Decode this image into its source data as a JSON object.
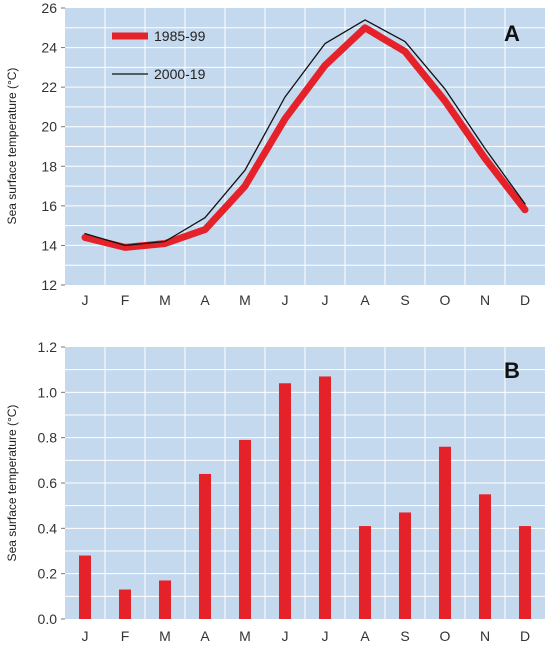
{
  "colors": {
    "background": "#c5d9ee",
    "grid": "#ffffff",
    "series_1985_99": "#e52129",
    "series_2000_19": "#111111",
    "bars": "#e52129"
  },
  "chart_data": [
    {
      "type": "line",
      "panel_label": "A",
      "title": "",
      "ylabel": "Sea surface temperature (°C)",
      "xlabel": "",
      "categories": [
        "J",
        "F",
        "M",
        "A",
        "M",
        "J",
        "J",
        "A",
        "S",
        "O",
        "N",
        "D"
      ],
      "ylim": [
        12,
        26
      ],
      "yticks": [
        12,
        14,
        16,
        18,
        20,
        22,
        24,
        26
      ],
      "grid": true,
      "legend_position": "top-left",
      "series": [
        {
          "name": "1985-99",
          "values": [
            14.4,
            13.9,
            14.1,
            14.8,
            17.0,
            20.4,
            23.1,
            25.0,
            23.8,
            21.3,
            18.4,
            15.8
          ]
        },
        {
          "name": "2000-19",
          "values": [
            14.6,
            14.0,
            14.2,
            15.4,
            17.8,
            21.5,
            24.2,
            25.4,
            24.3,
            21.9,
            18.9,
            16.1
          ]
        }
      ]
    },
    {
      "type": "bar",
      "panel_label": "B",
      "title": "",
      "ylabel": "Sea surface temperature (°C)",
      "xlabel": "",
      "categories": [
        "J",
        "F",
        "M",
        "A",
        "M",
        "J",
        "J",
        "A",
        "S",
        "O",
        "N",
        "D"
      ],
      "ylim": [
        0,
        1.2
      ],
      "yticks": [
        "0.0",
        "0.2",
        "0.4",
        "0.6",
        "0.8",
        "1.0",
        "1.2"
      ],
      "grid": true,
      "values": [
        0.28,
        0.13,
        0.17,
        0.64,
        0.79,
        1.04,
        1.07,
        0.41,
        0.47,
        0.76,
        0.55,
        0.41
      ]
    }
  ]
}
